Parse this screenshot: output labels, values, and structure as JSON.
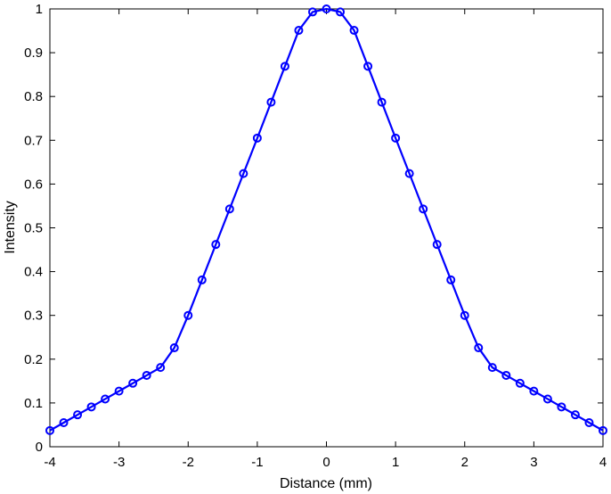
{
  "chart_data": {
    "type": "line",
    "title": "",
    "xlabel": "Distance (mm)",
    "ylabel": "Intensity",
    "xlim": [
      -4,
      4
    ],
    "ylim": [
      0,
      1
    ],
    "xticks": [
      "-4",
      "-3",
      "-2",
      "-1",
      "0",
      "1",
      "2",
      "3",
      "4"
    ],
    "yticks": [
      "0",
      "0.1",
      "0.2",
      "0.3",
      "0.4",
      "0.5",
      "0.6",
      "0.7",
      "0.8",
      "0.9",
      "1"
    ],
    "grid": false,
    "legend": "none",
    "series": [
      {
        "color": "#0000ff",
        "marker": "circle",
        "x": [
          -4.0,
          -3.8,
          -3.6,
          -3.4,
          -3.2,
          -3.0,
          -2.8,
          -2.6,
          -2.4,
          -2.2,
          -2.0,
          -1.8,
          -1.6,
          -1.4,
          -1.2,
          -1.0,
          -0.8,
          -0.6,
          -0.4,
          -0.2,
          0.0,
          0.2,
          0.4,
          0.6,
          0.8,
          1.0,
          1.2,
          1.4,
          1.6,
          1.8,
          2.0,
          2.2,
          2.4,
          2.6,
          2.8,
          3.0,
          3.2,
          3.4,
          3.6,
          3.8,
          4.0
        ],
        "y": [
          0.037,
          0.055,
          0.073,
          0.091,
          0.109,
          0.127,
          0.145,
          0.163,
          0.181,
          0.226,
          0.3,
          0.381,
          0.462,
          0.543,
          0.624,
          0.705,
          0.787,
          0.869,
          0.951,
          0.993,
          1.0,
          0.993,
          0.951,
          0.869,
          0.787,
          0.705,
          0.624,
          0.543,
          0.462,
          0.381,
          0.3,
          0.226,
          0.181,
          0.163,
          0.145,
          0.127,
          0.109,
          0.091,
          0.073,
          0.055,
          0.037
        ]
      }
    ]
  }
}
